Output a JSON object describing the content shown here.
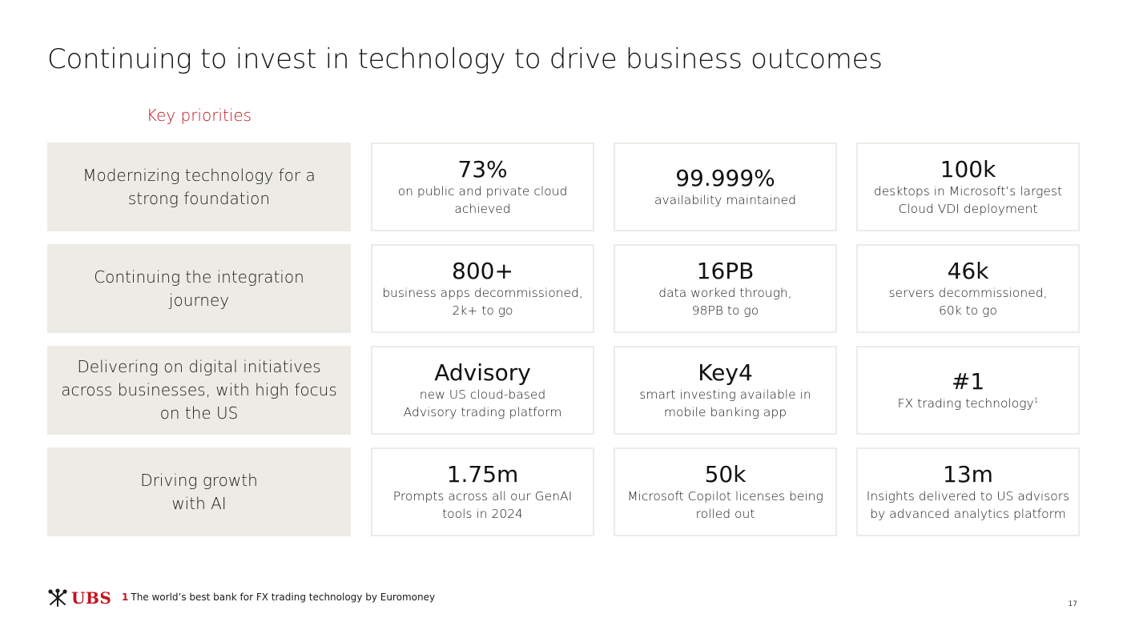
{
  "title": "Continuing to invest in technology to drive business outcomes",
  "section_label": "Key priorities",
  "rows": [
    {
      "priority": "Modernizing technology for a strong foundation",
      "cards": [
        {
          "value": "73%",
          "desc": "on public and private cloud achieved"
        },
        {
          "value": "99.999%",
          "desc": "availability maintained"
        },
        {
          "value": "100k",
          "desc": "desktops in Microsoft’s largest Cloud VDI deployment"
        }
      ]
    },
    {
      "priority": "Continuing the integration journey",
      "cards": [
        {
          "value": "800+",
          "desc": "business apps decommissioned, 2k+ to go"
        },
        {
          "value": "16PB",
          "desc": "data worked through, 98PB to go"
        },
        {
          "value": "46k",
          "desc": "servers decommissioned, 60k to go"
        }
      ]
    },
    {
      "priority": "Delivering on digital initiatives across businesses, with high focus on the US",
      "cards": [
        {
          "value": "Advisory",
          "desc": "new US cloud-based Advisory trading platform"
        },
        {
          "value": "Key4",
          "desc": "smart investing available in mobile banking app"
        },
        {
          "value": "#1",
          "desc": "FX trading technology",
          "footnote_ref": "1"
        }
      ]
    },
    {
      "priority": "Driving growth with AI",
      "cards": [
        {
          "value": "1.75m",
          "desc": "Prompts across all our GenAI tools in 2024"
        },
        {
          "value": "50k",
          "desc": "Microsoft Copilot licenses being rolled out"
        },
        {
          "value": "13m",
          "desc": "Insights delivered to US advisors by advanced analytics platform"
        }
      ]
    }
  ],
  "footer": {
    "logo_text": "UBS",
    "footnote_number": "1",
    "footnote_text": "The world’s best bank for FX trading technology by Euromoney",
    "page_number": "17"
  },
  "colors": {
    "accent_red": "#c0141e",
    "priority_bg": "#ecebe6",
    "card_border": "#ecebe6"
  }
}
